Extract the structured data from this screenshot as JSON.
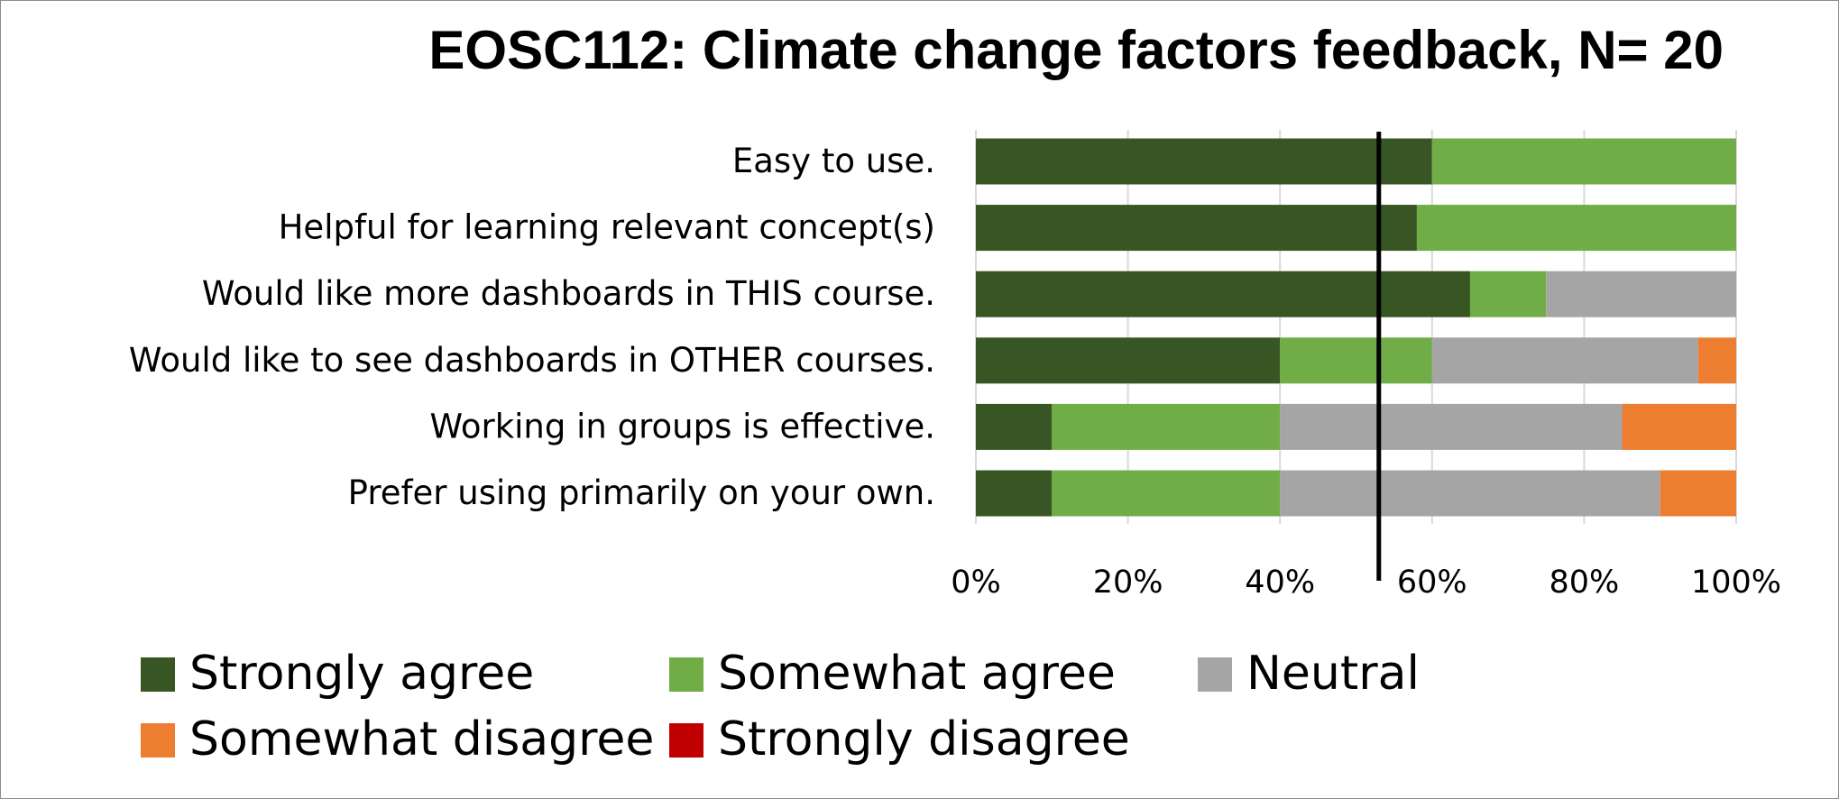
{
  "chart_data": {
    "type": "bar",
    "orientation": "horizontal",
    "stacked": true,
    "percent_stacked": true,
    "title": "EOSC112: Climate change factors feedback, N= 20",
    "categories": [
      "Easy to use.",
      "Helpful for learning relevant concept(s)",
      "Would like more dashboards in THIS course.",
      "Would like to see dashboards in OTHER courses.",
      "Working in groups is effective.",
      "Prefer using primarily on your own."
    ],
    "series": [
      {
        "name": "Strongly agree",
        "color": "#375623",
        "values": [
          60,
          58,
          65,
          40,
          10,
          10
        ]
      },
      {
        "name": "Somewhat agree",
        "color": "#70ad47",
        "values": [
          40,
          42,
          10,
          20,
          30,
          30
        ]
      },
      {
        "name": "Neutral",
        "color": "#a5a5a5",
        "values": [
          0,
          0,
          25,
          35,
          45,
          50
        ]
      },
      {
        "name": "Somewhat disagree",
        "color": "#ed7d31",
        "values": [
          0,
          0,
          0,
          5,
          15,
          10
        ]
      },
      {
        "name": "Strongly disagree",
        "color": "#c00000",
        "values": [
          0,
          0,
          0,
          0,
          0,
          0
        ]
      }
    ],
    "xlim": [
      0,
      100
    ],
    "x_ticks": [
      "0%",
      "20%",
      "40%",
      "60%",
      "80%",
      "100%"
    ],
    "reference_line_value": 53,
    "grid": true,
    "legend_position": "bottom"
  }
}
